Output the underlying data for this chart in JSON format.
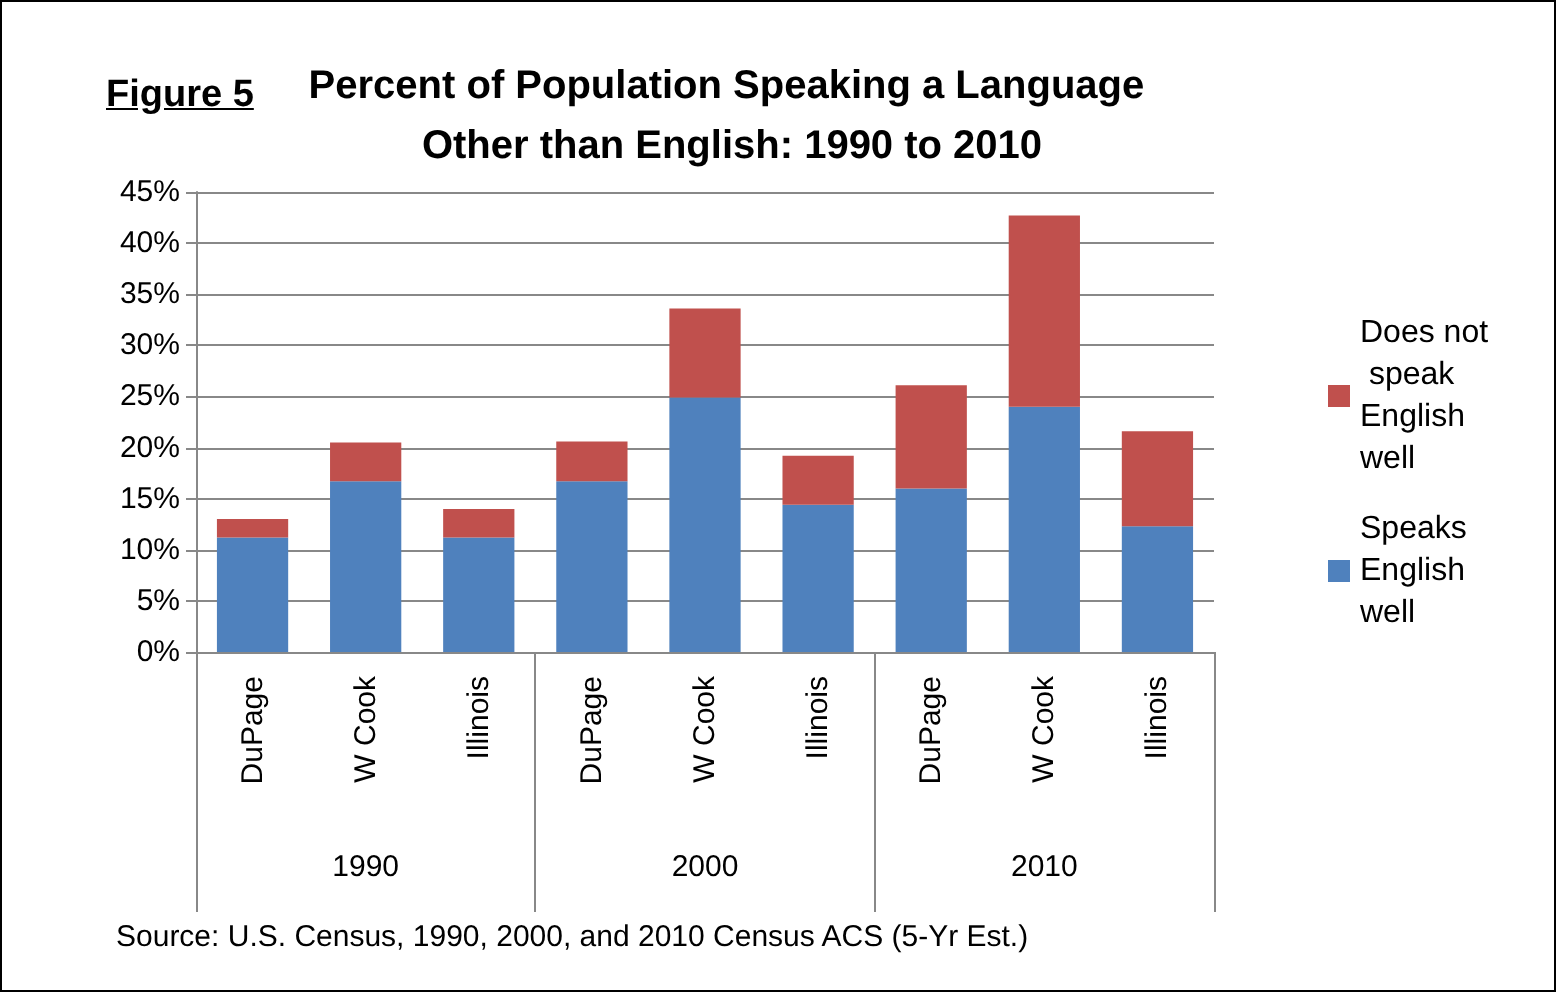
{
  "chart_data": {
    "type": "bar",
    "title": "Percent of Population Speaking a Language Other than English: 1990 to 2010",
    "subtitle": "Figure 5",
    "categories": [
      "DuPage",
      "W Cook",
      "Illinois",
      "DuPage",
      "W Cook",
      "Illinois",
      "DuPage",
      "W Cook",
      "Illinois"
    ],
    "series": [
      {
        "name": "Speaks English well",
        "color": "#4f81bd",
        "values": [
          11.2,
          16.7,
          11.2,
          16.7,
          24.9,
          14.4,
          16.0,
          24.0,
          12.3
        ]
      },
      {
        "name": "Does not speak English well",
        "color": "#c0504d",
        "values": [
          1.8,
          3.8,
          2.8,
          3.9,
          8.7,
          4.8,
          10.1,
          18.7,
          9.3
        ]
      }
    ],
    "stacked": true,
    "ylim": [
      0,
      45
    ],
    "yticks": [
      {
        "value": 0,
        "label": "0%"
      },
      {
        "value": 5,
        "label": "5%"
      },
      {
        "value": 10,
        "label": "10%"
      },
      {
        "value": 15,
        "label": "15%"
      },
      {
        "value": 20,
        "label": "20%"
      },
      {
        "value": 25,
        "label": "25%"
      },
      {
        "value": 30,
        "label": "30%"
      },
      {
        "value": 35,
        "label": "35%"
      },
      {
        "value": 40,
        "label": "40%"
      },
      {
        "value": 45,
        "label": "45%"
      }
    ],
    "grid": "y",
    "legend": "right",
    "annotations": [
      "1990",
      "2000",
      "2010",
      "Source: U.S. Census, 1990, 2000, and 2010 Census ACS (5-Yr Est.)"
    ]
  }
}
